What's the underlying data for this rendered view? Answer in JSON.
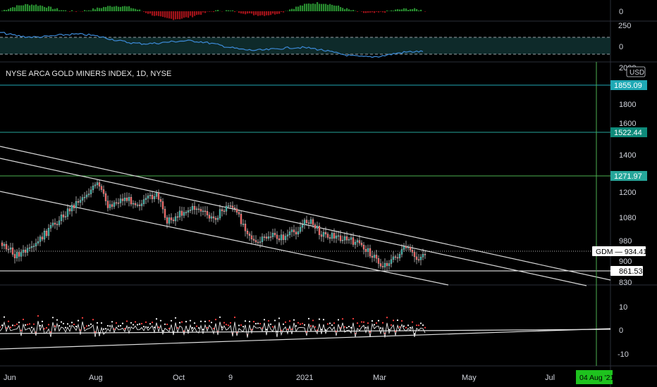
{
  "title": "NYSE ARCA GOLD MINERS INDEX, 1D, NYSE",
  "currency_badge": "USD",
  "colors": {
    "bg": "#000000",
    "up": "#26a69a",
    "down": "#ef5350",
    "hline": "#26a69a",
    "osc_line": "#3d8bd9",
    "vline": "#4caf50"
  },
  "top_indicator": {
    "scale_labels": [
      "0"
    ]
  },
  "mid_indicator": {
    "scale_labels": [
      "250",
      "0"
    ]
  },
  "main_axis": {
    "tick_labels": [
      "2000",
      "1800",
      "1600",
      "1400",
      "1200",
      "1080",
      "980",
      "900",
      "830"
    ]
  },
  "price_badges": [
    {
      "label": "1855.09",
      "color": "#1fa9b5"
    },
    {
      "label": "1522.44",
      "color": "#0e8a7a"
    },
    {
      "label": "1271.97",
      "color": "#26a69a"
    },
    {
      "label": "GDM",
      "value": "934.41"
    },
    {
      "label": "861.53"
    }
  ],
  "bottom_indicator": {
    "scale_labels": [
      "10",
      "0",
      "-10"
    ]
  },
  "x_axis": {
    "labels": [
      "Jun",
      "Aug",
      "Oct",
      "9",
      "2021",
      "Mar",
      "May",
      "Jul"
    ],
    "date_badge": "04 Aug '21"
  },
  "chart_data": {
    "type": "candlestick",
    "title": "NYSE ARCA GOLD MINERS INDEX, 1D, NYSE",
    "y_ticks": [
      2000,
      1800,
      1600,
      1400,
      1200,
      1080,
      980,
      900,
      830
    ],
    "horizontal_levels": [
      1855.09,
      1522.44,
      1271.97,
      861.53
    ],
    "last_close": 934.41,
    "series_trend": [
      {
        "period": "Jun",
        "close": 930
      },
      {
        "period": "Jul",
        "close": 1150
      },
      {
        "period": "Aug",
        "close": 1260
      },
      {
        "period": "Sep",
        "close": 1150
      },
      {
        "period": "Oct",
        "close": 1090
      },
      {
        "period": "Nov",
        "close": 1080
      },
      {
        "period": "Dec",
        "close": 990
      },
      {
        "period": "Jan",
        "close": 1060
      },
      {
        "period": "Feb",
        "close": 960
      },
      {
        "period": "Mar",
        "close": 880
      },
      {
        "period": "Mar-end",
        "close": 934.41
      }
    ]
  }
}
